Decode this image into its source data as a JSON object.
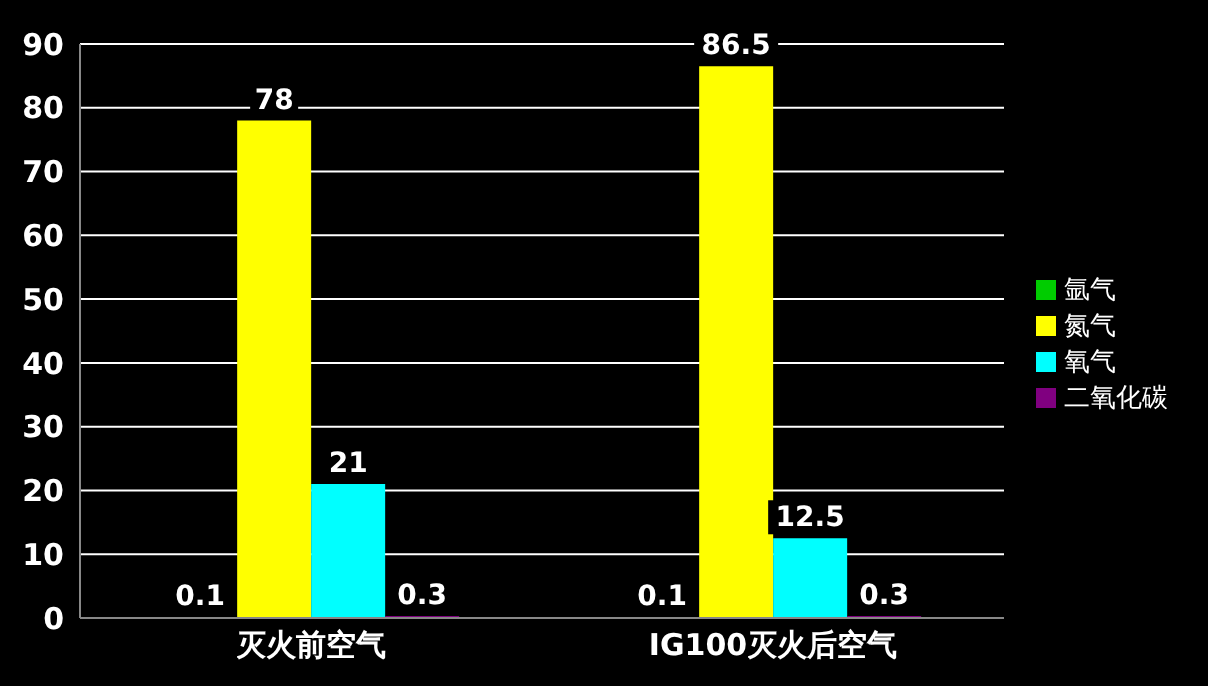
{
  "chart_data": {
    "type": "bar",
    "categories": [
      "灭火前空气",
      "IG100灭火后空气"
    ],
    "series": [
      {
        "name": "氩气",
        "color": "#00cc00",
        "values": [
          0.1,
          0.1
        ]
      },
      {
        "name": "氮气",
        "color": "#ffff00",
        "values": [
          78,
          86.5
        ]
      },
      {
        "name": "氧气",
        "color": "#00ffff",
        "values": [
          21,
          12.5
        ]
      },
      {
        "name": "二氧化碳",
        "color": "#800080",
        "values": [
          0.3,
          0.3
        ]
      }
    ],
    "ylim": [
      0,
      90
    ],
    "yticks": [
      0,
      10,
      20,
      30,
      40,
      50,
      60,
      70,
      80,
      90
    ],
    "grid": "y",
    "legend": "right",
    "data_labels": true
  }
}
